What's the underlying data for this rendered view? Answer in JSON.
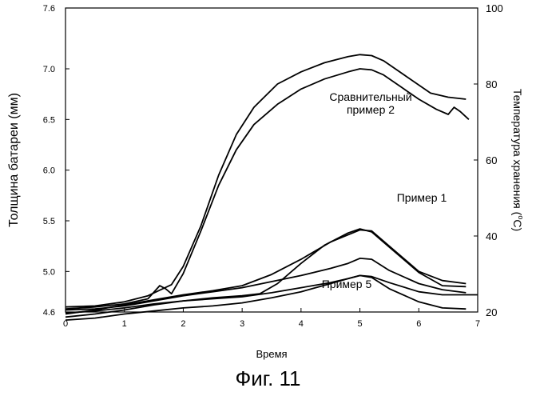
{
  "figure_caption": "Фиг. 11",
  "chart_data": {
    "type": "line",
    "xlabel": "Время",
    "ylabel_left": "Толщина батареи (мм)",
    "ylabel_right": "Температура хранения (",
    "ylabel_right_degree": "o",
    "ylabel_right_unit": "C)",
    "xlim": [
      0,
      7
    ],
    "ylim_left": [
      4.6,
      7.6
    ],
    "ylim_right": [
      20,
      100
    ],
    "x_ticks": [
      "0",
      "1",
      "2",
      "3",
      "4",
      "5",
      "6",
      "7"
    ],
    "y_left_ticks": [
      "4.6",
      "5.0",
      "5.5",
      "6.0",
      "6.5",
      "7.0",
      "7.6"
    ],
    "y_right_ticks": [
      "20",
      "40",
      "60",
      "80",
      "100"
    ],
    "grid": false,
    "annotations": [
      {
        "text_lines": [
          "Сравнительный",
          "пример 2"
        ]
      },
      {
        "text_lines": [
          "Пример 1"
        ]
      },
      {
        "text_lines": [
          "Пример 5"
        ]
      }
    ],
    "series": [
      {
        "axis": "left",
        "color": "#000000",
        "x": [
          0,
          0.5,
          1,
          1.4,
          1.8,
          2.0,
          2.3,
          2.6,
          2.9,
          3.2,
          3.6,
          4.0,
          4.4,
          4.8,
          5.0,
          5.2,
          5.4,
          5.8,
          6.2,
          6.5,
          6.8
        ],
        "y": [
          4.65,
          4.66,
          4.7,
          4.76,
          4.87,
          5.05,
          5.45,
          5.95,
          6.35,
          6.62,
          6.85,
          6.97,
          7.06,
          7.12,
          7.14,
          7.13,
          7.08,
          6.92,
          6.76,
          6.72,
          6.7
        ]
      },
      {
        "axis": "left",
        "color": "#000000",
        "x": [
          0,
          0.5,
          1,
          1.4,
          1.6,
          1.7,
          1.8,
          2.0,
          2.3,
          2.6,
          2.9,
          3.2,
          3.6,
          4.0,
          4.4,
          4.8,
          5.0,
          5.2,
          5.4,
          5.7,
          6.0,
          6.3,
          6.5,
          6.6,
          6.7,
          6.85
        ],
        "y": [
          4.63,
          4.65,
          4.68,
          4.73,
          4.86,
          4.83,
          4.78,
          4.98,
          5.4,
          5.85,
          6.2,
          6.45,
          6.65,
          6.8,
          6.9,
          6.97,
          7.0,
          6.99,
          6.94,
          6.82,
          6.7,
          6.6,
          6.55,
          6.62,
          6.58,
          6.5
        ]
      },
      {
        "axis": "left",
        "color": "#000000",
        "x": [
          0,
          0.5,
          1,
          1.5,
          2.0,
          2.5,
          3.0,
          3.5,
          4.0,
          4.5,
          5.0,
          5.2,
          5.5,
          6.0,
          6.4,
          6.8
        ],
        "y": [
          4.58,
          4.62,
          4.67,
          4.72,
          4.77,
          4.81,
          4.86,
          4.97,
          5.12,
          5.29,
          5.41,
          5.4,
          5.25,
          5.0,
          4.91,
          4.88
        ]
      },
      {
        "axis": "left",
        "color": "#000000",
        "x": [
          0,
          0.5,
          1,
          1.5,
          2.0,
          2.5,
          3.0,
          3.3,
          3.6,
          4.0,
          4.4,
          4.8,
          5.0,
          5.2,
          5.5,
          6.0,
          6.4,
          6.8
        ],
        "y": [
          4.55,
          4.58,
          4.62,
          4.67,
          4.71,
          4.74,
          4.76,
          4.78,
          4.88,
          5.08,
          5.26,
          5.38,
          5.42,
          5.39,
          5.24,
          4.99,
          4.86,
          4.85
        ]
      },
      {
        "axis": "left",
        "color": "#000000",
        "x": [
          0,
          0.5,
          1,
          1.5,
          2.0,
          2.5,
          3.0,
          3.5,
          4.0,
          4.5,
          4.8,
          5.0,
          5.2,
          5.5,
          6.0,
          6.4,
          6.8
        ],
        "y": [
          4.62,
          4.63,
          4.66,
          4.71,
          4.76,
          4.8,
          4.84,
          4.9,
          4.96,
          5.03,
          5.08,
          5.13,
          5.12,
          5.01,
          4.88,
          4.82,
          4.79
        ]
      },
      {
        "axis": "left",
        "color": "#000000",
        "x": [
          0,
          0.5,
          1,
          1.5,
          2.0,
          2.5,
          3.0,
          3.5,
          4.0,
          4.5,
          4.8,
          5.0,
          5.2,
          5.5,
          6.0,
          6.4,
          6.8
        ],
        "y": [
          4.52,
          4.54,
          4.58,
          4.61,
          4.64,
          4.66,
          4.69,
          4.74,
          4.8,
          4.88,
          4.93,
          4.96,
          4.94,
          4.83,
          4.7,
          4.64,
          4.63
        ]
      },
      {
        "axis": "left",
        "color": "#000000",
        "x": [
          0,
          0.5,
          1,
          1.5,
          2.0,
          2.5,
          3.0,
          3.5,
          4.0,
          4.5,
          4.8,
          5.0,
          5.2,
          5.5,
          6.0,
          6.4,
          7.0
        ],
        "y": [
          4.59,
          4.61,
          4.64,
          4.68,
          4.71,
          4.73,
          4.75,
          4.79,
          4.84,
          4.89,
          4.93,
          4.96,
          4.95,
          4.89,
          4.8,
          4.77,
          4.77
        ]
      }
    ]
  }
}
